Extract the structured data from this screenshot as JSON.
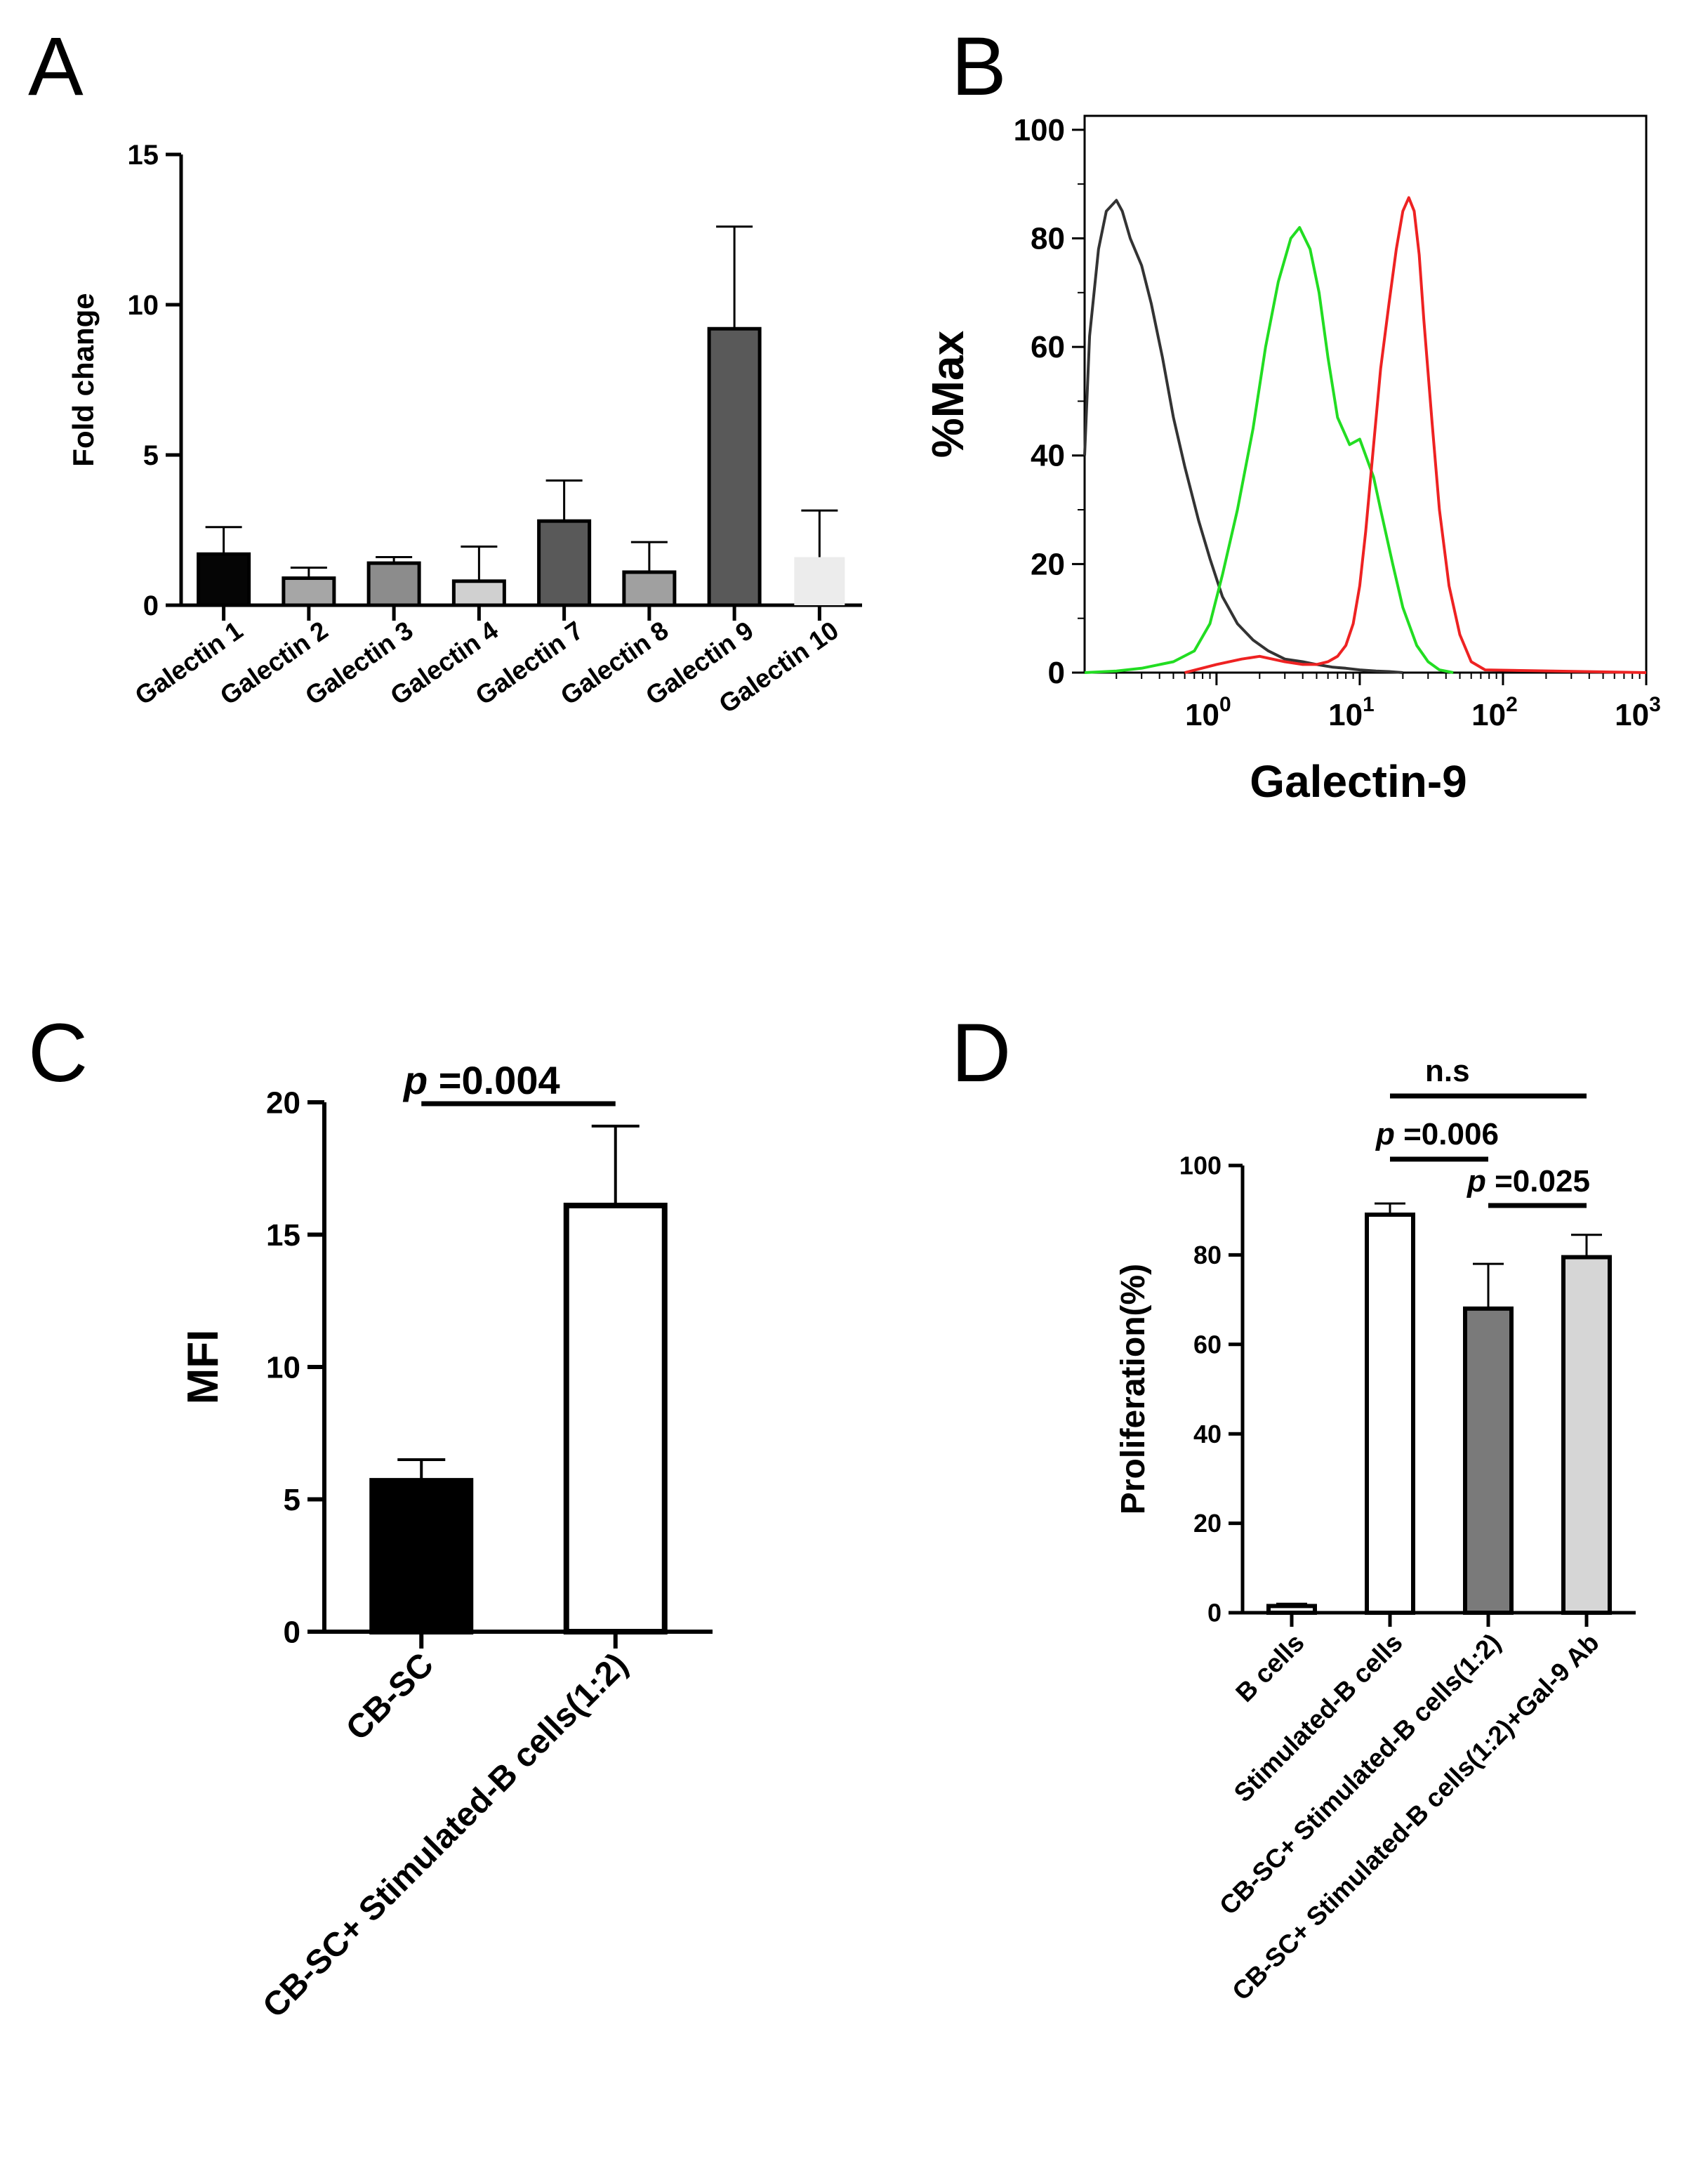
{
  "panel_labels": [
    "A",
    "B",
    "C",
    "D"
  ],
  "chart_data": [
    {
      "panel": "A",
      "type": "bar",
      "title": "",
      "xlabel": "",
      "ylabel": "Fold change",
      "ylim": [
        0,
        15
      ],
      "yticks": [
        "0",
        "5",
        "10",
        "15"
      ],
      "categories": [
        "Galectin 1",
        "Galectin 2",
        "Galectin 3",
        "Galectin 4",
        "Galectin 7",
        "Galectin 8",
        "Galectin 9",
        "Galectin 10"
      ],
      "values": [
        1.7,
        0.9,
        1.4,
        0.8,
        2.8,
        1.1,
        9.2,
        1.6
      ],
      "errors": [
        0.9,
        0.35,
        0.2,
        1.15,
        1.35,
        1.0,
        3.4,
        1.55
      ],
      "colors": [
        "#050505",
        "#a6a6a6",
        "#8c8c8c",
        "#d0d0d0",
        "#595959",
        "#a0a0a0",
        "#595959",
        "#ececec"
      ]
    },
    {
      "panel": "B",
      "type": "line",
      "title": "",
      "xlabel": "Galectin-9",
      "ylabel": "%Max",
      "xscale": "log",
      "xlim": [
        0.12,
        1000
      ],
      "ylim": [
        0,
        100
      ],
      "yticks": [
        "0",
        "20",
        "40",
        "60",
        "80",
        "100"
      ],
      "xticks": [
        {
          "base": "10",
          "exp": "0",
          "value": 1
        },
        {
          "base": "10",
          "exp": "1",
          "value": 10
        },
        {
          "base": "10",
          "exp": "2",
          "value": 100
        },
        {
          "base": "10",
          "exp": "3",
          "value": 1000
        }
      ],
      "series": [
        {
          "name": "black",
          "color": "#333333",
          "x": [
            0.12,
            0.13,
            0.15,
            0.17,
            0.2,
            0.22,
            0.25,
            0.3,
            0.35,
            0.42,
            0.5,
            0.6,
            0.75,
            0.9,
            1.1,
            1.4,
            1.8,
            2.3,
            3,
            4,
            5,
            6.5,
            8,
            10,
            13,
            16,
            20
          ],
          "y": [
            40,
            62,
            78,
            85,
            87,
            85,
            80,
            75,
            68,
            58,
            47,
            38,
            28,
            21,
            14,
            9,
            6,
            4,
            2.5,
            2,
            1.5,
            1,
            0.8,
            0.5,
            0.3,
            0.2,
            0
          ]
        },
        {
          "name": "green",
          "color": "#22dd22",
          "x": [
            0.12,
            0.2,
            0.3,
            0.5,
            0.7,
            0.9,
            1.1,
            1.4,
            1.8,
            2.2,
            2.7,
            3.3,
            3.8,
            4.5,
            5.2,
            6,
            7,
            8.5,
            10,
            11,
            12.5,
            14,
            17,
            20,
            25,
            30,
            36,
            45
          ],
          "y": [
            0,
            0.3,
            0.8,
            2,
            4,
            9,
            18,
            30,
            45,
            60,
            72,
            80,
            82,
            78,
            70,
            58,
            47,
            42,
            43,
            40,
            36,
            30,
            20,
            12,
            5,
            2,
            0.5,
            0
          ]
        },
        {
          "name": "red",
          "color": "#ee2222",
          "x": [
            0.6,
            1,
            1.5,
            2,
            3,
            4,
            5,
            6,
            7,
            8,
            9,
            10,
            11,
            12.5,
            14,
            16,
            18,
            20,
            22,
            24,
            26,
            28,
            32,
            36,
            42,
            50,
            60,
            75,
            1000
          ],
          "y": [
            0,
            1.5,
            2.5,
            3,
            2,
            1.5,
            1.5,
            2,
            3,
            5,
            9,
            16,
            26,
            42,
            56,
            68,
            78,
            85,
            87.5,
            85,
            77,
            65,
            46,
            30,
            16,
            7,
            2,
            0.5,
            0
          ]
        }
      ]
    },
    {
      "panel": "C",
      "type": "bar",
      "title": "",
      "xlabel": "",
      "ylabel": "MFI",
      "ylim": [
        0,
        20
      ],
      "yticks": [
        "0",
        "5",
        "10",
        "15",
        "20"
      ],
      "categories": [
        "CB-SC",
        "CB-SC+ Stimulated-B cells(1:2)"
      ],
      "values": [
        5.7,
        16.1
      ],
      "errors": [
        0.8,
        3.0
      ],
      "colors": [
        "#000000",
        "#ffffff"
      ],
      "annotations": [
        {
          "italic": "p",
          "text": " =0.004",
          "from": 0,
          "to": 1
        }
      ]
    },
    {
      "panel": "D",
      "type": "bar",
      "title": "",
      "xlabel": "",
      "ylabel": "Proliferation(%)",
      "ylim": [
        0,
        100
      ],
      "yticks": [
        "0",
        "20",
        "40",
        "60",
        "80",
        "100"
      ],
      "categories": [
        "B cells",
        "Stimulated-B cells",
        "CB-SC+ Stimulated-B cells(1:2)",
        "CB-SC+ Stimulated-B cells(1:2)+Gal-9 Ab"
      ],
      "values": [
        1.5,
        89,
        68,
        79.5
      ],
      "errors": [
        0.5,
        2.5,
        10,
        5
      ],
      "colors": [
        "#ffffff",
        "#ffffff",
        "#7a7a7a",
        "#d6d6d6"
      ],
      "annotations": [
        {
          "italic": "",
          "text": "n.s",
          "from": 1,
          "to": 3
        },
        {
          "italic": "p",
          "text": " =0.006",
          "from": 1,
          "to": 2
        },
        {
          "italic": "p",
          "text": " =0.025",
          "from": 2,
          "to": 3
        }
      ]
    }
  ]
}
